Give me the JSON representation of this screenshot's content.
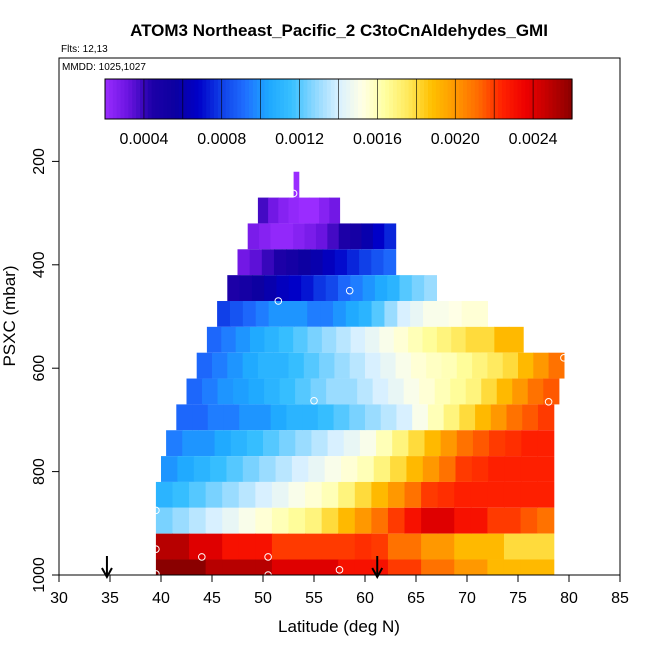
{
  "chart_data": {
    "type": "heatmap",
    "title": "ATOM3 Northeast_Pacific_2 C3toCnAldehydes_GMI",
    "flights_label": "Flts: 12,13",
    "mmdd_label": "MMDD: 1025,1027",
    "xlabel": "Latitude (deg N)",
    "ylabel": "PSXC (mbar)",
    "xlim": [
      30,
      85
    ],
    "ylim": [
      1000,
      0
    ],
    "x_ticks": [
      "30",
      "35",
      "40",
      "45",
      "50",
      "55",
      "60",
      "65",
      "70",
      "75",
      "80",
      "85"
    ],
    "y_ticks": [
      "200",
      "400",
      "600",
      "800",
      "1000"
    ],
    "colorbar": {
      "range": [
        0.0002,
        0.0026
      ],
      "tick_labels": [
        "0.0004",
        "0.0008",
        "0.0012",
        "0.0016",
        "0.0020",
        "0.0024"
      ],
      "tick_values": [
        0.0004,
        0.0008,
        0.0012,
        0.0016,
        0.002,
        0.0024
      ],
      "colors": [
        "#9a2cff",
        "#6a14e0",
        "#1e00a8",
        "#0c00a0",
        "#0000c8",
        "#1040e8",
        "#1f6fff",
        "#1ea8ff",
        "#38c0ff",
        "#8ed8ff",
        "#d8f0ff",
        "#ffffe6",
        "#ffffa0",
        "#ffe85a",
        "#ffc000",
        "#ff9800",
        "#ff6a00",
        "#ff2200",
        "#ee0000",
        "#c00000",
        "#8a0000"
      ]
    },
    "grid": false,
    "legend_position": "top",
    "bands": [
      {
        "p_top": 220,
        "p_bot": 270,
        "lat_start": 53.0,
        "lat_end": 53.5,
        "values": [
          0.0002
        ]
      },
      {
        "p_top": 270,
        "p_bot": 320,
        "lat_start": 49.5,
        "lat_end": 57.5,
        "values": [
          0.00038,
          0.0003,
          0.00025,
          0.00022,
          0.0002,
          0.0002,
          0.00025,
          0.0003
        ]
      },
      {
        "p_top": 320,
        "p_bot": 370,
        "lat_start": 48.5,
        "lat_end": 63.0,
        "values": [
          0.00028,
          0.00025,
          0.00022,
          0.00022,
          0.00025,
          0.00028,
          0.00032,
          0.00038,
          0.00045,
          0.0005,
          0.0006,
          0.00068,
          0.00075
        ]
      },
      {
        "p_top": 370,
        "p_bot": 420,
        "lat_start": 47.5,
        "lat_end": 63.0,
        "values": [
          0.0003,
          0.00034,
          0.0004,
          0.00045,
          0.0005,
          0.00055,
          0.0006,
          0.00065,
          0.0007,
          0.00075,
          0.0008,
          0.00085,
          0.0009
        ]
      },
      {
        "p_top": 420,
        "p_bot": 470,
        "lat_start": 46.5,
        "lat_end": 67.0,
        "values": [
          0.00045,
          0.0005,
          0.00055,
          0.0006,
          0.00065,
          0.00068,
          0.00072,
          0.00078,
          0.00082,
          0.0009,
          0.00095,
          0.001,
          0.00105,
          0.0011,
          0.0012,
          0.00125,
          0.0013
        ]
      },
      {
        "p_top": 470,
        "p_bot": 520,
        "lat_start": 45.5,
        "lat_end": 72.0,
        "values": [
          0.0008,
          0.00085,
          0.0009,
          0.00095,
          0.001,
          0.001,
          0.001,
          0.00095,
          0.00095,
          0.001,
          0.00105,
          0.0011,
          0.0012,
          0.0013,
          0.0014,
          0.00145,
          0.0015,
          0.0015,
          0.00152,
          0.00155,
          0.00155
        ]
      },
      {
        "p_top": 520,
        "p_bot": 570,
        "lat_start": 44.5,
        "lat_end": 75.5,
        "values": [
          0.0009,
          0.00095,
          0.001,
          0.00105,
          0.0011,
          0.00115,
          0.0012,
          0.00125,
          0.0013,
          0.00135,
          0.0014,
          0.00145,
          0.0015,
          0.00155,
          0.0016,
          0.00165,
          0.0017,
          0.00175,
          0.0018,
          0.0018,
          0.0019,
          0.0019
        ]
      },
      {
        "p_top": 570,
        "p_bot": 620,
        "lat_start": 43.5,
        "lat_end": 79.5,
        "values": [
          0.0009,
          0.00095,
          0.001,
          0.00105,
          0.0011,
          0.0011,
          0.00115,
          0.0012,
          0.00125,
          0.0013,
          0.00135,
          0.0014,
          0.00145,
          0.0015,
          0.00155,
          0.00158,
          0.0016,
          0.00165,
          0.0017,
          0.00175,
          0.0018,
          0.0019,
          0.002,
          0.0021
        ]
      },
      {
        "p_top": 620,
        "p_bot": 670,
        "lat_start": 42.5,
        "lat_end": 79.0,
        "values": [
          0.0009,
          0.00095,
          0.001,
          0.00102,
          0.00105,
          0.0011,
          0.00115,
          0.0012,
          0.00125,
          0.0013,
          0.0013,
          0.00135,
          0.0014,
          0.00145,
          0.0015,
          0.00155,
          0.0016,
          0.00165,
          0.0017,
          0.0018,
          0.0019,
          0.002,
          0.0021,
          0.00215
        ]
      },
      {
        "p_top": 670,
        "p_bot": 720,
        "lat_start": 41.5,
        "lat_end": 78.5,
        "values": [
          0.0009,
          0.0009,
          0.00095,
          0.00095,
          0.001,
          0.001,
          0.00105,
          0.0011,
          0.0011,
          0.00115,
          0.0012,
          0.00125,
          0.0013,
          0.00135,
          0.0014,
          0.0015,
          0.0016,
          0.0017,
          0.0018,
          0.0019,
          0.002,
          0.0021,
          0.00215,
          0.0022
        ]
      },
      {
        "p_top": 720,
        "p_bot": 770,
        "lat_start": 40.5,
        "lat_end": 78.5,
        "values": [
          0.00095,
          0.001,
          0.001,
          0.00105,
          0.0011,
          0.00115,
          0.0012,
          0.00125,
          0.0013,
          0.00135,
          0.0014,
          0.00145,
          0.0015,
          0.0016,
          0.0017,
          0.0018,
          0.0019,
          0.002,
          0.0021,
          0.00215,
          0.0022,
          0.00222,
          0.00225,
          0.00225
        ]
      },
      {
        "p_top": 770,
        "p_bot": 820,
        "lat_start": 40.0,
        "lat_end": 78.5,
        "values": [
          0.001,
          0.00105,
          0.0011,
          0.00115,
          0.0012,
          0.00125,
          0.0013,
          0.00135,
          0.0014,
          0.00145,
          0.0015,
          0.00155,
          0.0016,
          0.0017,
          0.0018,
          0.0019,
          0.002,
          0.0021,
          0.0022,
          0.00222,
          0.00225,
          0.00225,
          0.00225,
          0.00225
        ]
      },
      {
        "p_top": 820,
        "p_bot": 870,
        "lat_start": 39.5,
        "lat_end": 78.5,
        "values": [
          0.0011,
          0.00115,
          0.0012,
          0.00125,
          0.0013,
          0.00135,
          0.0014,
          0.00145,
          0.0015,
          0.00155,
          0.0016,
          0.0017,
          0.0018,
          0.0019,
          0.002,
          0.0021,
          0.0022,
          0.00222,
          0.00225,
          0.00225,
          0.00225,
          0.00225,
          0.00225,
          0.00225
        ]
      },
      {
        "p_top": 870,
        "p_bot": 920,
        "lat_start": 39.5,
        "lat_end": 78.5,
        "values": [
          0.00125,
          0.0013,
          0.00135,
          0.0014,
          0.00145,
          0.0015,
          0.00155,
          0.0016,
          0.00165,
          0.0017,
          0.0018,
          0.0019,
          0.002,
          0.0021,
          0.0022,
          0.0023,
          0.0024,
          0.0024,
          0.0023,
          0.0023,
          0.0022,
          0.0022,
          0.00215,
          0.0021
        ]
      },
      {
        "p_top": 920,
        "p_bot": 970,
        "lat_start": 39.5,
        "lat_end": 78.5,
        "values": [
          0.0025,
          0.0025,
          0.0024,
          0.0024,
          0.0023,
          0.0023,
          0.0023,
          0.0022,
          0.0022,
          0.0022,
          0.0022,
          0.0022,
          0.00222,
          0.0022,
          0.0021,
          0.0021,
          0.002,
          0.002,
          0.0019,
          0.0019,
          0.0019,
          0.0018,
          0.0018,
          0.0018
        ]
      },
      {
        "p_top": 970,
        "p_bot": 1010,
        "lat_start": 39.5,
        "lat_end": 78.5,
        "values": [
          0.0026,
          0.0026,
          0.0026,
          0.0025,
          0.0025,
          0.0025,
          0.0025,
          0.0024,
          0.0024,
          0.0024,
          0.0024,
          0.0023,
          0.0023,
          0.0023,
          0.0022,
          0.0022,
          0.0021,
          0.0021,
          0.002,
          0.002,
          0.0019,
          0.0019,
          0.0019,
          0.0019
        ]
      }
    ],
    "points": [
      {
        "lat": 53.0,
        "p": 262
      },
      {
        "lat": 51.5,
        "p": 470
      },
      {
        "lat": 58.5,
        "p": 450
      },
      {
        "lat": 55.0,
        "p": 663
      },
      {
        "lat": 79.5,
        "p": 580
      },
      {
        "lat": 78.0,
        "p": 665
      },
      {
        "lat": 39.5,
        "p": 875
      },
      {
        "lat": 39.5,
        "p": 950
      },
      {
        "lat": 39.5,
        "p": 998
      },
      {
        "lat": 44.0,
        "p": 965
      },
      {
        "lat": 50.5,
        "p": 965
      },
      {
        "lat": 50.5,
        "p": 1000
      },
      {
        "lat": 57.5,
        "p": 990
      }
    ],
    "arrows": [
      {
        "lat": 34.7
      },
      {
        "lat": 61.2
      }
    ]
  }
}
